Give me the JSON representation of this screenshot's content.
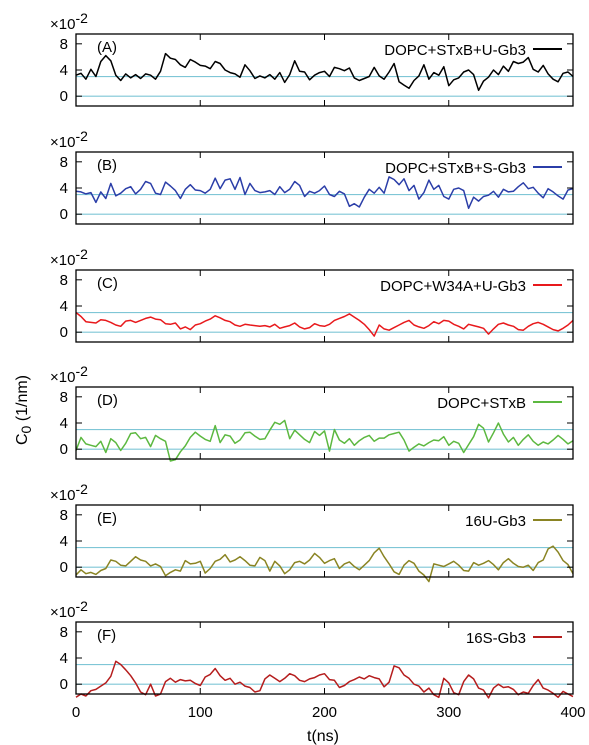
{
  "figure": {
    "y_axis_label": "C",
    "y_axis_label_sub": "0",
    "y_axis_label_unit": " (1/nm)",
    "x_axis_label": "t(ns)",
    "x_tick_labels": [
      "0",
      "100",
      "200",
      "300",
      "400"
    ],
    "y_tick_labels": [
      "8",
      "4",
      "0"
    ],
    "multiplier_base": "×10",
    "multiplier_exp": "-2",
    "reference_line_color": "#7fc6d6"
  },
  "chart_data": [
    {
      "type": "line",
      "panel_label": "(A)",
      "legend": "DOPC+STxB+U-Gb3",
      "color": "#000000",
      "xlim": [
        0,
        400
      ],
      "ylim": [
        -1.5,
        9.5
      ],
      "y_multiplier": 0.01,
      "reference_lines": [
        0,
        3
      ],
      "series": [
        {
          "name": "DOPC+STxB+U-Gb3",
          "values": [
            3.2,
            3.5,
            2.6,
            4.1,
            3.0,
            5.3,
            6.2,
            5.4,
            3.2,
            2.4,
            3.4,
            2.8,
            3.3,
            2.7,
            3.4,
            3.2,
            2.6,
            3.8,
            6.5,
            5.8,
            5.6,
            4.8,
            4.4,
            5.6,
            5.2,
            4.7,
            4.6,
            4.2,
            5.3,
            5.0,
            4.0,
            3.6,
            3.4,
            2.9,
            4.8,
            3.9,
            2.7,
            3.1,
            2.8,
            3.3,
            2.6,
            3.6,
            2.1,
            3.3,
            5.4,
            3.8,
            3.7,
            2.5,
            3.2,
            3.6,
            3.8,
            3.0,
            4.4,
            4.2,
            3.9,
            4.3,
            2.8,
            2.4,
            2.7,
            3.0,
            4.4,
            3.1,
            2.6,
            3.7,
            5.0,
            2.2,
            1.7,
            1.2,
            2.4,
            3.1,
            4.8,
            2.6,
            3.6,
            3.2,
            4.5,
            1.6,
            2.5,
            2.8,
            3.7,
            4.0,
            3.3,
            0.9,
            2.3,
            2.9,
            4.0,
            3.3,
            4.6,
            3.8,
            5.3,
            5.0,
            5.2,
            5.9,
            4.1,
            3.7,
            4.7,
            3.4,
            2.6,
            2.2,
            3.5,
            3.7,
            3.0
          ]
        }
      ]
    },
    {
      "type": "line",
      "panel_label": "(B)",
      "legend": "DOPC+STxB+S-Gb3",
      "color": "#2b3ea8",
      "xlim": [
        0,
        400
      ],
      "ylim": [
        -1.5,
        9.5
      ],
      "y_multiplier": 0.01,
      "reference_lines": [
        0,
        3
      ],
      "series": [
        {
          "name": "DOPC+STxB+S-Gb3",
          "values": [
            3.5,
            3.4,
            3.1,
            3.3,
            1.8,
            3.4,
            2.4,
            4.7,
            2.8,
            3.2,
            3.9,
            4.2,
            3.1,
            3.8,
            5.0,
            4.7,
            3.2,
            3.0,
            4.9,
            4.3,
            3.6,
            2.4,
            3.8,
            4.5,
            3.7,
            3.6,
            3.2,
            3.8,
            5.5,
            3.9,
            5.2,
            5.4,
            3.8,
            5.6,
            3.0,
            4.7,
            3.6,
            3.3,
            3.4,
            3.6,
            3.0,
            4.2,
            3.3,
            3.8,
            5.0,
            4.4,
            2.7,
            3.5,
            3.2,
            3.6,
            4.3,
            3.0,
            2.7,
            3.5,
            3.1,
            1.2,
            1.6,
            1.1,
            2.6,
            3.8,
            3.2,
            4.1,
            3.2,
            5.7,
            5.3,
            4.5,
            5.4,
            3.6,
            4.4,
            2.3,
            3.3,
            5.2,
            3.8,
            4.4,
            2.7,
            2.3,
            3.8,
            4.0,
            3.6,
            0.9,
            2.6,
            2.0,
            2.7,
            2.9,
            3.5,
            2.6,
            3.8,
            3.4,
            3.5,
            4.2,
            4.8,
            3.9,
            4.1,
            3.2,
            2.5,
            3.9,
            3.4,
            2.8,
            2.3,
            3.7,
            3.9
          ]
        }
      ]
    },
    {
      "type": "line",
      "panel_label": "(C)",
      "legend": "DOPC+W34A+U-Gb3",
      "color": "#e8191c",
      "xlim": [
        0,
        400
      ],
      "ylim": [
        -1.5,
        9.5
      ],
      "y_multiplier": 0.01,
      "reference_lines": [
        0,
        3
      ],
      "series": [
        {
          "name": "DOPC+W34A+U-Gb3",
          "values": [
            3.0,
            2.4,
            1.6,
            1.5,
            1.4,
            1.9,
            1.8,
            1.5,
            1.1,
            0.9,
            1.7,
            1.8,
            1.5,
            1.8,
            2.1,
            2.3,
            2.0,
            1.9,
            1.3,
            1.2,
            1.4,
            0.5,
            0.8,
            0.4,
            1.1,
            1.3,
            1.7,
            2.0,
            2.5,
            2.2,
            1.8,
            1.6,
            1.1,
            0.9,
            1.2,
            1.1,
            1.0,
            0.9,
            1.0,
            0.8,
            1.2,
            0.6,
            0.8,
            1.0,
            1.4,
            0.8,
            0.5,
            0.7,
            1.3,
            1.0,
            0.9,
            1.2,
            1.8,
            2.1,
            2.4,
            2.8,
            2.3,
            1.8,
            1.2,
            0.4,
            -0.6,
            1.1,
            0.5,
            0.3,
            0.7,
            1.1,
            1.5,
            1.8,
            1.1,
            0.8,
            0.6,
            1.0,
            1.6,
            1.3,
            1.8,
            1.7,
            1.2,
            0.9,
            0.5,
            1.2,
            1.0,
            0.8,
            0.6,
            -0.3,
            0.5,
            1.2,
            1.4,
            1.1,
            0.9,
            0.4,
            0.3,
            0.9,
            1.3,
            1.5,
            1.2,
            0.8,
            0.4,
            0.2,
            0.6,
            1.1,
            1.8
          ]
        }
      ]
    },
    {
      "type": "line",
      "panel_label": "(D)",
      "legend": "DOPC+STxB",
      "color": "#5cb840",
      "xlim": [
        0,
        400
      ],
      "ylim": [
        -1.5,
        9.5
      ],
      "y_multiplier": 0.01,
      "reference_lines": [
        0,
        3
      ],
      "series": [
        {
          "name": "DOPC+STxB",
          "values": [
            -0.2,
            1.8,
            0.8,
            0.6,
            0.4,
            1.2,
            -0.5,
            1.6,
            1.0,
            -0.2,
            0.9,
            2.4,
            2.5,
            1.6,
            1.8,
            0.4,
            2.1,
            1.6,
            1.2,
            -1.8,
            -1.6,
            -0.4,
            0.5,
            1.8,
            2.6,
            2.0,
            1.5,
            1.2,
            3.6,
            1.0,
            2.2,
            2.0,
            0.9,
            1.4,
            2.5,
            2.6,
            2.0,
            1.5,
            1.6,
            2.9,
            4.1,
            3.8,
            4.4,
            1.6,
            2.9,
            2.2,
            1.5,
            1.0,
            2.7,
            2.1,
            2.8,
            -0.3,
            3.0,
            1.4,
            0.9,
            1.6,
            0.6,
            1.3,
            1.8,
            2.1,
            1.2,
            1.7,
            1.7,
            2.2,
            2.4,
            2.6,
            1.4,
            -0.3,
            0.3,
            0.8,
            0.5,
            1.0,
            1.4,
            1.3,
            1.9,
            0.6,
            1.2,
            0.9,
            -0.5,
            0.7,
            1.9,
            3.8,
            3.2,
            1.1,
            2.5,
            4.0,
            2.3,
            1.1,
            1.8,
            0.6,
            1.5,
            2.2,
            1.2,
            0.6,
            1.1,
            0.8,
            1.4,
            2.1,
            1.5,
            0.8,
            1.3
          ]
        }
      ]
    },
    {
      "type": "line",
      "panel_label": "(E)",
      "legend": "16U-Gb3",
      "color": "#8a8423",
      "xlim": [
        0,
        400
      ],
      "ylim": [
        -1.5,
        9.5
      ],
      "y_multiplier": 0.01,
      "reference_lines": [
        0,
        3
      ],
      "series": [
        {
          "name": "16U-Gb3",
          "values": [
            -1.2,
            -0.4,
            -1.0,
            -0.8,
            -1.1,
            -0.5,
            -0.2,
            1.1,
            0.9,
            0.3,
            0.2,
            0.9,
            1.6,
            1.1,
            0.9,
            0.2,
            0.5,
            0.1,
            -1.3,
            -0.8,
            -0.4,
            -0.6,
            1.0,
            0.5,
            0.6,
            0.9,
            -0.9,
            -0.2,
            0.9,
            1.2,
            1.9,
            0.8,
            1.1,
            1.6,
            1.0,
            0.3,
            0.2,
            1.5,
            1.0,
            -0.6,
            0.9,
            0.2,
            -1.0,
            -0.4,
            0.7,
            0.9,
            0.5,
            1.1,
            2.1,
            1.5,
            0.6,
            1.0,
            1.3,
            -0.2,
            0.5,
            0.8,
            0.1,
            -0.4,
            0.3,
            1.0,
            2.2,
            2.9,
            1.6,
            0.5,
            -0.7,
            -1.1,
            0.3,
            1.0,
            0.6,
            -0.6,
            -1.2,
            -2.2,
            0.5,
            0.3,
            0.1,
            0.5,
            0.9,
            0.3,
            -0.5,
            -0.6,
            0.7,
            0.3,
            0.6,
            1.0,
            0.4,
            -0.4,
            0.7,
            1.3,
            0.6,
            0.1,
            0.0,
            0.3,
            -0.5,
            0.7,
            1.1,
            2.8,
            3.2,
            2.3,
            1.0,
            0.4,
            -1.0
          ]
        }
      ]
    },
    {
      "type": "line",
      "panel_label": "(F)",
      "legend": "16S-Gb3",
      "color": "#b51d1d",
      "xlim": [
        0,
        400
      ],
      "ylim": [
        -1.5,
        9.5
      ],
      "y_multiplier": 0.01,
      "reference_lines": [
        0,
        3
      ],
      "series": [
        {
          "name": "16S-Gb3",
          "values": [
            -2.0,
            -1.5,
            -1.8,
            -1.0,
            -0.8,
            -0.3,
            0.2,
            1.2,
            3.5,
            3.0,
            2.2,
            1.3,
            0.2,
            -1.2,
            -1.6,
            0.0,
            -1.8,
            -1.5,
            0.4,
            0.9,
            0.3,
            0.7,
            0.5,
            0.6,
            0.1,
            -0.2,
            1.1,
            1.5,
            2.4,
            1.3,
            0.6,
            0.9,
            0.0,
            0.3,
            -0.3,
            -0.5,
            -1.2,
            -1.0,
            0.8,
            1.4,
            0.9,
            0.4,
            0.9,
            1.6,
            1.3,
            0.6,
            0.4,
            0.8,
            1.0,
            1.4,
            1.6,
            0.7,
            0.6,
            -0.5,
            -0.2,
            0.4,
            0.7,
            1.1,
            0.8,
            1.3,
            1.0,
            0.8,
            -0.4,
            0.3,
            2.8,
            2.5,
            1.4,
            0.9,
            0.0,
            -0.3,
            -1.2,
            -0.6,
            -1.6,
            -2.0,
            0.9,
            0.2,
            -1.3,
            -1.6,
            0.4,
            1.4,
            0.8,
            -0.6,
            -0.9,
            -2.1,
            -0.6,
            0.0,
            -0.5,
            -0.4,
            -0.8,
            -1.6,
            -1.2,
            -1.4,
            -0.2,
            0.7,
            -0.6,
            -0.9,
            -1.4,
            -2.0,
            -1.1,
            -1.5,
            -1.9
          ]
        }
      ]
    }
  ]
}
